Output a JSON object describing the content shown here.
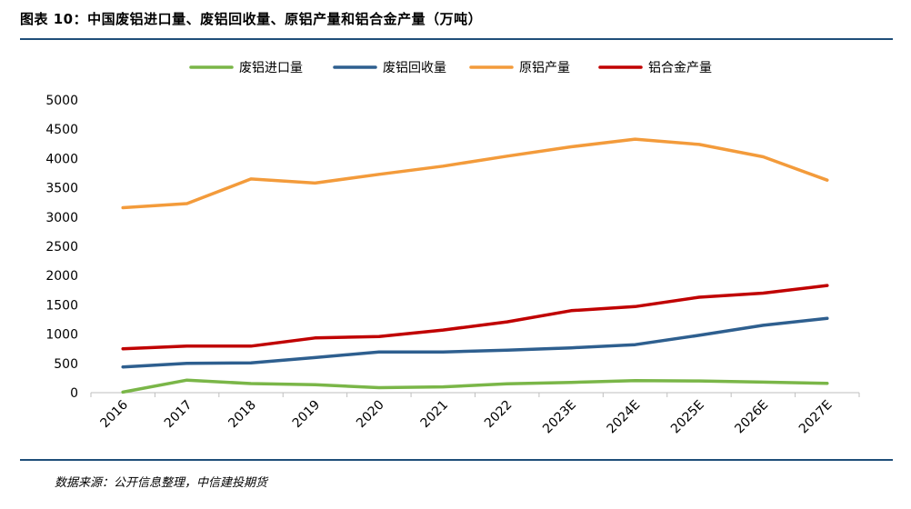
{
  "title": "图表 10：中国废铝进口量、废铝回收量、原铝产量和铝合金产量（万吨）",
  "source": "数据来源：公开信息整理，中信建投期货",
  "colors": {
    "废铝进口量": "#7ab648",
    "废铝回收量": "#2e5f8f",
    "原铝产量": "#f39b3b",
    "铝合金产量": "#c00000",
    "rule": "#1f4e79",
    "axis": "#bfbfbf"
  },
  "chart_data": {
    "type": "line",
    "categories": [
      "2016",
      "2017",
      "2018",
      "2019",
      "2020",
      "2021",
      "2022",
      "2023E",
      "2024E",
      "2025E",
      "2026E",
      "2027E"
    ],
    "ylim": [
      0,
      5000
    ],
    "yticks": [
      0,
      500,
      1000,
      1500,
      2000,
      2500,
      3000,
      3500,
      4000,
      4500,
      5000
    ],
    "grid": false,
    "legend_position": "top",
    "series": [
      {
        "name": "废铝进口量",
        "values": [
          10,
          215,
          155,
          135,
          85,
          100,
          150,
          175,
          205,
          200,
          180,
          160
        ]
      },
      {
        "name": "废铝回收量",
        "values": [
          440,
          500,
          510,
          600,
          695,
          695,
          725,
          765,
          820,
          980,
          1150,
          1270
        ]
      },
      {
        "name": "原铝产量",
        "values": [
          3160,
          3230,
          3650,
          3580,
          3730,
          3870,
          4040,
          4200,
          4330,
          4240,
          4030,
          3630
        ]
      },
      {
        "name": "铝合金产量",
        "values": [
          750,
          795,
          795,
          935,
          960,
          1070,
          1210,
          1400,
          1470,
          1630,
          1700,
          1830
        ]
      }
    ]
  }
}
